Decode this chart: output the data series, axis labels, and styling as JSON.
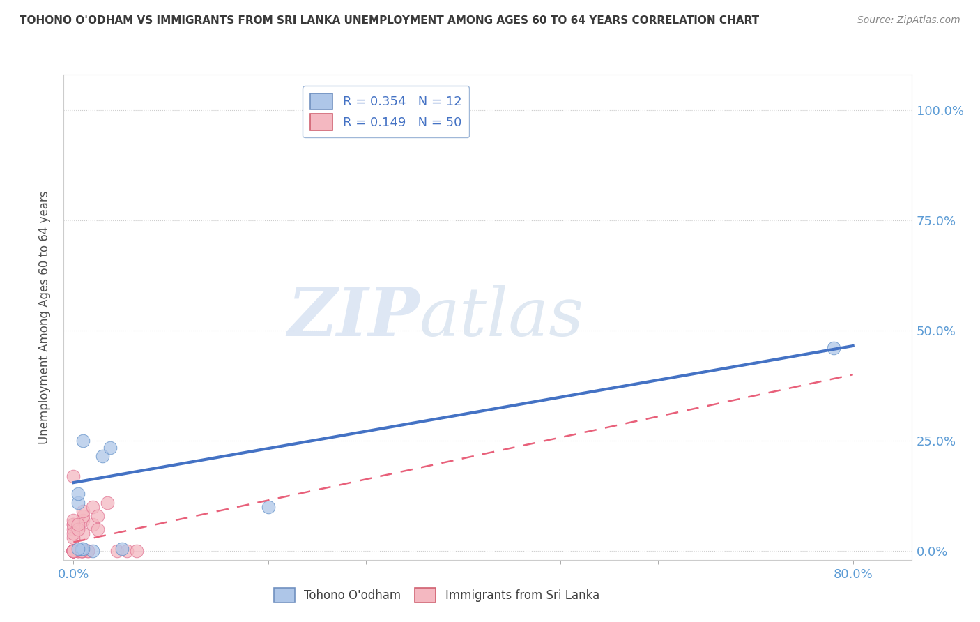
{
  "title": "TOHONO O'ODHAM VS IMMIGRANTS FROM SRI LANKA UNEMPLOYMENT AMONG AGES 60 TO 64 YEARS CORRELATION CHART",
  "source": "Source: ZipAtlas.com",
  "ylabel": "Unemployment Among Ages 60 to 64 years",
  "ytick_labels": [
    "0.0%",
    "25.0%",
    "50.0%",
    "75.0%",
    "100.0%"
  ],
  "ytick_vals": [
    0.0,
    0.25,
    0.5,
    0.75,
    1.0
  ],
  "xtick_labels": [
    "0.0%",
    "",
    "",
    "",
    "",
    "",
    "",
    "",
    "80.0%"
  ],
  "xtick_vals": [
    0.0,
    0.1,
    0.2,
    0.3,
    0.4,
    0.5,
    0.6,
    0.7,
    0.8
  ],
  "xlim": [
    -0.01,
    0.86
  ],
  "ylim": [
    -0.02,
    1.08
  ],
  "legend1_label": "R = 0.354   N = 12",
  "legend2_label": "R = 0.149   N = 50",
  "legend1_fill": "#aec6e8",
  "legend2_fill": "#f4b8c1",
  "line1_color": "#4472c4",
  "line2_color": "#e8607a",
  "watermark_zip": "ZIP",
  "watermark_atlas": "atlas",
  "grid_color": "#cccccc",
  "title_color": "#3a3a3a",
  "source_color": "#888888",
  "tick_color": "#5b9bd5",
  "ylabel_color": "#505050",
  "tohono_x": [
    0.02,
    0.03,
    0.038,
    0.01,
    0.005,
    0.005,
    0.008,
    0.01,
    0.2,
    0.005,
    0.78,
    0.05
  ],
  "tohono_y": [
    0.0,
    0.215,
    0.235,
    0.25,
    0.11,
    0.13,
    0.005,
    0.005,
    0.1,
    0.005,
    0.46,
    0.005
  ],
  "srilanka_x": [
    0.0,
    0.0,
    0.0,
    0.0,
    0.0,
    0.0,
    0.0,
    0.0,
    0.0,
    0.0,
    0.005,
    0.005,
    0.005,
    0.008,
    0.008,
    0.01,
    0.01,
    0.01,
    0.01,
    0.01,
    0.015,
    0.015,
    0.02,
    0.02,
    0.025,
    0.025,
    0.035,
    0.045,
    0.055,
    0.065,
    0.0,
    0.0,
    0.0,
    0.0,
    0.0,
    0.0,
    0.005,
    0.005,
    0.0,
    0.0,
    0.0,
    0.0,
    0.0,
    0.0,
    0.008,
    0.0,
    0.0,
    0.0,
    0.0,
    0.008
  ],
  "srilanka_y": [
    0.0,
    0.0,
    0.0,
    0.0,
    0.0,
    0.0,
    0.0,
    0.0,
    0.0,
    0.17,
    0.0,
    0.0,
    0.0,
    0.0,
    0.0,
    0.0,
    0.04,
    0.07,
    0.08,
    0.09,
    0.0,
    0.0,
    0.06,
    0.1,
    0.05,
    0.08,
    0.11,
    0.0,
    0.0,
    0.0,
    0.05,
    0.06,
    0.06,
    0.07,
    0.03,
    0.04,
    0.05,
    0.06,
    0.0,
    0.0,
    0.0,
    0.0,
    0.0,
    0.0,
    0.0,
    0.0,
    0.0,
    0.0,
    0.0,
    0.0
  ],
  "line1_x0": 0.0,
  "line1_y0": 0.155,
  "line1_x1": 0.8,
  "line1_y1": 0.465,
  "line2_x0": 0.0,
  "line2_y0": 0.02,
  "line2_x1": 0.8,
  "line2_y1": 0.4
}
